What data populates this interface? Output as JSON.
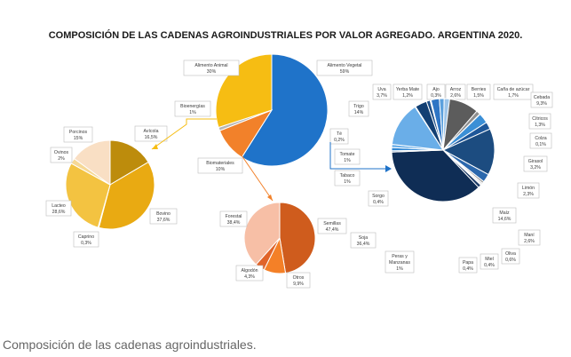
{
  "chart_data": [
    {
      "type": "pie",
      "title": "COMPOSICIÓN DE LAS CADENAS AGROINDUSTRIALES POR VALOR AGREGADO. ARGENTINA 2020.",
      "slices": [
        {
          "label": "Alimento Vegetal",
          "value_text": "59%",
          "value": 59,
          "color": "#1f73c9"
        },
        {
          "label": "Biomateriales",
          "value_text": "10%",
          "value": 10,
          "color": "#f2812a"
        },
        {
          "label": "Bioenergías",
          "value_text": "1%",
          "value": 1,
          "color": "#b6b6b6"
        },
        {
          "label": "Alimento Animal",
          "value_text": "30%",
          "value": 30,
          "color": "#f6bd13"
        }
      ]
    },
    {
      "type": "pie",
      "slices": [
        {
          "label": "Avícola",
          "value_text": "16,5%",
          "value": 16.5,
          "color": "#bd8c0c"
        },
        {
          "label": "Bovino",
          "value_text": "37,6%",
          "value": 37.6,
          "color": "#e9aa12"
        },
        {
          "label": "Caprino",
          "value_text": "0,3%",
          "value": 0.3,
          "color": "#c99a28"
        },
        {
          "label": "Lacteo",
          "value_text": "28,6%",
          "value": 28.6,
          "color": "#f3c341"
        },
        {
          "label": "Ovinos",
          "value_text": "2%",
          "value": 2,
          "color": "#f6d895"
        },
        {
          "label": "Porcinos",
          "value_text": "15%",
          "value": 15,
          "color": "#f9dfc4"
        }
      ]
    },
    {
      "type": "pie",
      "slices": [
        {
          "label": "Semillas",
          "value_text": "47,4%",
          "value": 47.4,
          "color": "#cf5c1d"
        },
        {
          "label": "Otros",
          "value_text": "9,9%",
          "value": 9.9,
          "color": "#f48027"
        },
        {
          "label": "Algodón",
          "value_text": "4,3%",
          "value": 4.3,
          "color": "#e0642a"
        },
        {
          "label": "Forestal",
          "value_text": "38,4%",
          "value": 38.4,
          "color": "#f7bfa6"
        }
      ]
    },
    {
      "type": "pie",
      "slices": [
        {
          "label": "Yerba Mate",
          "value_text": "1,2%",
          "value": 1.2,
          "color": "#1d4f88"
        },
        {
          "label": "Ajo",
          "value_text": "0,3%",
          "value": 0.3,
          "color": "#2c5f9c"
        },
        {
          "label": "Arroz",
          "value_text": "2,6%",
          "value": 2.6,
          "color": "#2e75c4"
        },
        {
          "label": "Berries",
          "value_text": "1,5%",
          "value": 1.5,
          "color": "#5ba0dd"
        },
        {
          "label": "Caña de azúcar",
          "value_text": "1,7%",
          "value": 1.7,
          "color": "#9cc4e8"
        },
        {
          "label": "Cebada",
          "value_text": "9,3%",
          "value": 9.3,
          "color": "#5c5c5c"
        },
        {
          "label": "Cítricos",
          "value_text": "1,3%",
          "value": 1.3,
          "color": "#8f8f8f"
        },
        {
          "label": "Colza",
          "value_text": "0,1%",
          "value": 0.1,
          "color": "#c4c4c4"
        },
        {
          "label": "Girasol",
          "value_text": "3,2%",
          "value": 3.2,
          "color": "#3b8fd6"
        },
        {
          "label": "Limón",
          "value_text": "2,3%",
          "value": 2.3,
          "color": "#1e5799"
        },
        {
          "label": "Maíz",
          "value_text": "14,6%",
          "value": 14.6,
          "color": "#1c4c80"
        },
        {
          "label": "Maní",
          "value_text": "2,6%",
          "value": 2.6,
          "color": "#2b68ad"
        },
        {
          "label": "Oliva",
          "value_text": "0,6%",
          "value": 0.6,
          "color": "#8a8a8a"
        },
        {
          "label": "Miel",
          "value_text": "0,4%",
          "value": 0.4,
          "color": "#aaaaaa"
        },
        {
          "label": "Papa",
          "value_text": "0,4%",
          "value": 0.4,
          "color": "#cccccc"
        },
        {
          "label": "Peras y Manzanas",
          "value_text": "1%",
          "value": 1,
          "color": "#1b3a66"
        },
        {
          "label": "Soja",
          "value_text": "36,4%",
          "value": 36.4,
          "color": "#0f2d55"
        },
        {
          "label": "Sorgo",
          "value_text": "0,4%",
          "value": 0.4,
          "color": "#3f6f9f"
        },
        {
          "label": "Tabaco",
          "value_text": "1%",
          "value": 1,
          "color": "#2f86d3"
        },
        {
          "label": "Tomate",
          "value_text": "1%",
          "value": 1,
          "color": "#69aee8"
        },
        {
          "label": "Trigo",
          "value_text": "14%",
          "value": 14,
          "color": "#6aaee8"
        },
        {
          "label": "Té",
          "value_text": "0,2%",
          "value": 0.2,
          "color": "#3d7fc1"
        },
        {
          "label": "Uva",
          "value_text": "3,7%",
          "value": 3.7,
          "color": "#123f73"
        }
      ]
    }
  ],
  "caption": "Composición de las cadenas agroindustriales."
}
